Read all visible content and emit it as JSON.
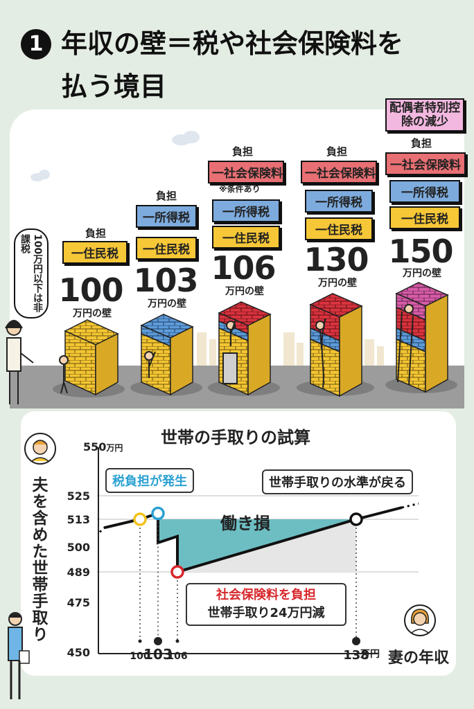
{
  "header": {
    "number": "1",
    "title_line1": "年収の壁＝税や社会保険料を",
    "title_line2": "払う境目"
  },
  "bubble": {
    "text": "100万円以下は非課税"
  },
  "walls": [
    {
      "burden_label": "負担",
      "tags": [
        "一住民税"
      ],
      "number": "100",
      "caption": "万円の壁"
    },
    {
      "burden_label": "負担",
      "tags": [
        "一所得税",
        "一住民税"
      ],
      "number": "103",
      "caption": "万円の壁"
    },
    {
      "burden_label": "負担",
      "tags": [
        "一社会保険料",
        "一所得税",
        "一住民税"
      ],
      "note": "※条件あり",
      "number": "106",
      "caption": "万円の壁"
    },
    {
      "burden_label": "負担",
      "tags": [
        "一社会保険料",
        "一所得税",
        "一住民税"
      ],
      "number": "130",
      "caption": "万円の壁"
    },
    {
      "burden_label": "負担",
      "top_tag": "配偶者特別控除の減少",
      "tags": [
        "一社会保険料",
        "一所得税",
        "一住民税"
      ],
      "number": "150",
      "caption": "万円の壁"
    }
  ],
  "chart": {
    "title": "世帯の手取りの試算",
    "y_axis_label": "夫を含めた世帯手取り",
    "y_unit": "万円",
    "x_axis_label": "妻の年収",
    "x_unit": "万円",
    "callout_tax": "税負担が発生",
    "callout_recover": "世帯手取りの水準が戻る",
    "callout_social_1": "社会保険料を負担",
    "callout_social_2": "世帯手取り24万円減",
    "loss_label": "働き損"
  },
  "chart_data": {
    "type": "line",
    "title": "世帯の手取りの試算",
    "ylabel": "夫を含めた世帯手取り",
    "xlabel": "妻の年収",
    "y_ticks": [
      550,
      525,
      513,
      500,
      489,
      475,
      450
    ],
    "x_ticks": [
      "100",
      "103",
      "106",
      "138"
    ],
    "series": [
      {
        "points": [
          {
            "x": 95,
            "y": 509
          },
          {
            "x": 100,
            "y": 513
          },
          {
            "x": 103,
            "y": 516
          },
          {
            "x": 103,
            "y": 502
          },
          {
            "x": 106,
            "y": 505
          },
          {
            "x": 106,
            "y": 489
          },
          {
            "x": 138,
            "y": 513
          },
          {
            "x": 146,
            "y": 519
          }
        ]
      }
    ],
    "markers": [
      {
        "x": 100,
        "y": 513,
        "color": "#f2c21a"
      },
      {
        "x": 103,
        "y": 516,
        "color": "#2aa1d2"
      },
      {
        "x": 106,
        "y": 489,
        "color": "#d7262b"
      },
      {
        "x": 138,
        "y": 513,
        "color": "#ffffff"
      }
    ]
  },
  "colors": {
    "resident_tax": "#f6c737",
    "income_tax": "#7dabdd",
    "social_insurance": "#e86f73",
    "spouse_deduction": "#f3b8e0",
    "loss_fill": "#6dbec3",
    "tax_callout": "#2aa1d2",
    "social_callout": "#d7262b"
  }
}
